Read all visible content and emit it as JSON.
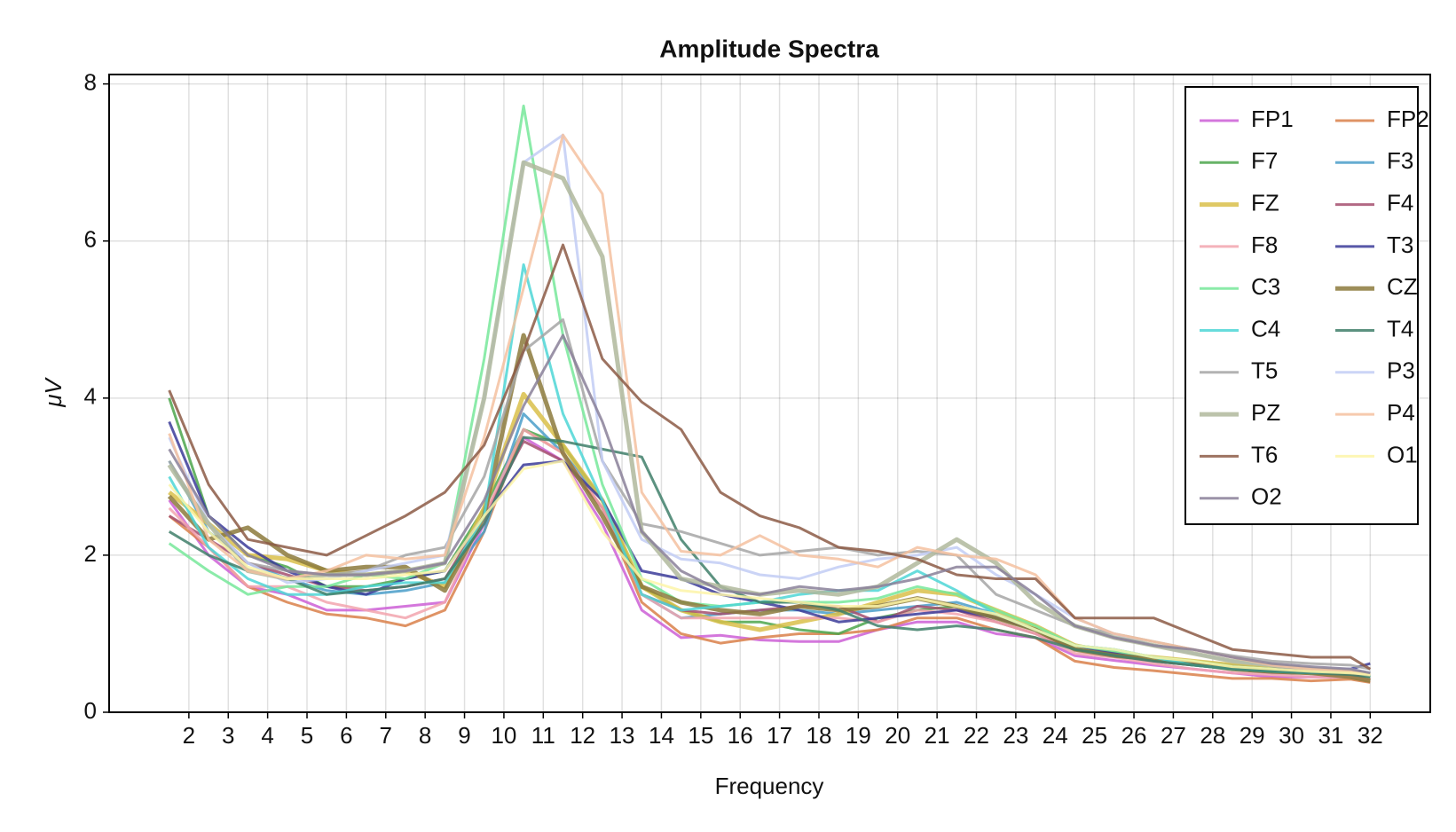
{
  "chart_data": {
    "type": "line",
    "title": "Amplitude Spectra",
    "xlabel": "Frequency",
    "ylabel": "μV",
    "x": [
      1.5,
      2.5,
      3.5,
      4.5,
      5.5,
      6.5,
      7.5,
      8.5,
      9.5,
      10.5,
      11.5,
      12.5,
      13.5,
      14.5,
      15.5,
      16.5,
      17.5,
      18.5,
      19.5,
      20.5,
      21.5,
      22.5,
      23.5,
      24.5,
      25.5,
      26.5,
      27.5,
      28.5,
      29.5,
      30.5,
      31.5,
      32
    ],
    "xlim": [
      -0.025,
      33.525
    ],
    "xticks": [
      2,
      3,
      4,
      5,
      6,
      7,
      8,
      9,
      10,
      11,
      12,
      13,
      14,
      15,
      16,
      17,
      18,
      19,
      20,
      21,
      22,
      23,
      24,
      25,
      26,
      27,
      28,
      29,
      30,
      31,
      32
    ],
    "ylim": [
      0,
      8.12
    ],
    "yticks": [
      0,
      2,
      4,
      6,
      8
    ],
    "grid": true,
    "legend": "top-right",
    "series": [
      {
        "name": "FP1",
        "color": "#cc5fd6",
        "width": 3,
        "values": [
          2.7,
          2.0,
          1.6,
          1.5,
          1.3,
          1.3,
          1.35,
          1.4,
          2.4,
          3.5,
          3.2,
          2.4,
          1.3,
          0.95,
          0.98,
          0.92,
          0.9,
          0.9,
          1.05,
          1.15,
          1.15,
          1.0,
          0.95,
          0.72,
          0.66,
          0.6,
          0.55,
          0.5,
          0.45,
          0.45,
          0.45,
          0.42
        ]
      },
      {
        "name": "FP2",
        "color": "#d9804a",
        "width": 3,
        "values": [
          2.5,
          2.1,
          1.6,
          1.4,
          1.25,
          1.2,
          1.1,
          1.3,
          2.3,
          3.6,
          3.3,
          2.6,
          1.4,
          1.0,
          0.88,
          0.95,
          1.0,
          1.0,
          1.05,
          1.2,
          1.2,
          1.05,
          0.95,
          0.65,
          0.57,
          0.53,
          0.48,
          0.43,
          0.43,
          0.4,
          0.42,
          0.38
        ]
      },
      {
        "name": "F7",
        "color": "#4ca64c",
        "width": 3,
        "values": [
          4.0,
          2.5,
          2.0,
          1.85,
          1.6,
          1.6,
          1.7,
          1.8,
          2.6,
          3.6,
          3.4,
          2.7,
          1.6,
          1.3,
          1.15,
          1.15,
          1.05,
          1.0,
          1.2,
          1.3,
          1.35,
          1.2,
          1.05,
          0.8,
          0.75,
          0.65,
          0.6,
          0.55,
          0.5,
          0.5,
          0.5,
          0.45
        ]
      },
      {
        "name": "F3",
        "color": "#4a9ec9",
        "width": 3,
        "values": [
          3.2,
          2.3,
          1.9,
          1.7,
          1.55,
          1.5,
          1.55,
          1.65,
          2.3,
          3.8,
          3.3,
          2.7,
          1.5,
          1.2,
          1.25,
          1.3,
          1.3,
          1.25,
          1.3,
          1.35,
          1.4,
          1.25,
          1.05,
          0.85,
          0.8,
          0.7,
          0.65,
          0.6,
          0.55,
          0.5,
          0.5,
          0.5
        ]
      },
      {
        "name": "FZ",
        "color": "#d9bf4a",
        "width": 5,
        "values": [
          2.8,
          2.4,
          2.0,
          1.95,
          1.8,
          1.75,
          1.8,
          1.6,
          2.6,
          4.05,
          3.4,
          2.7,
          1.6,
          1.3,
          1.15,
          1.05,
          1.15,
          1.25,
          1.4,
          1.55,
          1.5,
          1.3,
          1.1,
          0.85,
          0.75,
          0.7,
          0.65,
          0.6,
          0.55,
          0.5,
          0.5,
          0.48
        ]
      },
      {
        "name": "F4",
        "color": "#a54f6e",
        "width": 3,
        "values": [
          2.5,
          2.2,
          1.9,
          1.75,
          1.6,
          1.55,
          1.6,
          1.7,
          2.5,
          3.45,
          3.2,
          2.6,
          1.5,
          1.3,
          1.25,
          1.3,
          1.35,
          1.35,
          1.15,
          1.35,
          1.3,
          1.15,
          1.0,
          0.8,
          0.72,
          0.65,
          0.6,
          0.55,
          0.5,
          0.5,
          0.48,
          0.42
        ]
      },
      {
        "name": "F8",
        "color": "#f2a5ae",
        "width": 3,
        "values": [
          2.6,
          2.1,
          1.6,
          1.6,
          1.4,
          1.3,
          1.2,
          1.4,
          2.5,
          3.6,
          3.3,
          2.6,
          1.5,
          1.2,
          1.2,
          1.2,
          1.2,
          1.2,
          1.15,
          1.3,
          1.25,
          1.15,
          1.0,
          0.75,
          0.7,
          0.62,
          0.55,
          0.5,
          0.48,
          0.45,
          0.45,
          0.42
        ]
      },
      {
        "name": "T3",
        "color": "#3b3b99",
        "width": 3,
        "values": [
          3.7,
          2.5,
          2.1,
          1.8,
          1.6,
          1.5,
          1.7,
          1.8,
          2.5,
          3.15,
          3.2,
          2.7,
          1.8,
          1.7,
          1.5,
          1.4,
          1.3,
          1.15,
          1.2,
          1.25,
          1.3,
          1.2,
          1.05,
          0.85,
          0.75,
          0.7,
          0.62,
          0.58,
          0.55,
          0.55,
          0.55,
          0.62
        ]
      },
      {
        "name": "C3",
        "color": "#77e89a",
        "width": 3,
        "values": [
          2.15,
          1.8,
          1.5,
          1.6,
          1.6,
          1.75,
          1.7,
          1.9,
          4.5,
          7.72,
          4.8,
          2.9,
          1.7,
          1.4,
          1.35,
          1.4,
          1.4,
          1.4,
          1.45,
          1.6,
          1.5,
          1.3,
          1.1,
          0.85,
          0.78,
          0.7,
          0.65,
          0.58,
          0.55,
          0.5,
          0.52,
          0.45
        ]
      },
      {
        "name": "CZ",
        "color": "#8c7a3c",
        "width": 5,
        "values": [
          2.75,
          2.2,
          2.35,
          2.0,
          1.8,
          1.85,
          1.85,
          1.55,
          2.5,
          4.8,
          3.3,
          2.5,
          1.6,
          1.4,
          1.3,
          1.25,
          1.35,
          1.3,
          1.35,
          1.45,
          1.35,
          1.2,
          1.05,
          0.8,
          0.72,
          0.68,
          0.62,
          0.55,
          0.52,
          0.5,
          0.45,
          0.4
        ]
      },
      {
        "name": "C4",
        "color": "#4dd6d6",
        "width": 3,
        "values": [
          3.0,
          2.1,
          1.7,
          1.5,
          1.5,
          1.6,
          1.65,
          1.65,
          2.5,
          5.7,
          3.8,
          2.7,
          1.5,
          1.3,
          1.35,
          1.4,
          1.5,
          1.55,
          1.55,
          1.8,
          1.55,
          1.25,
          1.05,
          0.85,
          0.8,
          0.7,
          0.6,
          0.55,
          0.52,
          0.5,
          0.52,
          0.5
        ]
      },
      {
        "name": "T4",
        "color": "#3f7f6a",
        "width": 3,
        "values": [
          2.3,
          2.0,
          1.8,
          1.7,
          1.5,
          1.55,
          1.6,
          1.7,
          2.4,
          3.5,
          3.45,
          3.35,
          3.25,
          2.2,
          1.6,
          1.4,
          1.4,
          1.3,
          1.1,
          1.05,
          1.1,
          1.05,
          0.95,
          0.8,
          0.72,
          0.65,
          0.6,
          0.55,
          0.52,
          0.5,
          0.48,
          0.45
        ]
      },
      {
        "name": "T5",
        "color": "#a6a6a6",
        "width": 3,
        "values": [
          3.2,
          2.4,
          1.9,
          1.8,
          1.75,
          1.8,
          2.0,
          2.1,
          3.0,
          4.6,
          5.0,
          3.2,
          2.4,
          2.3,
          2.15,
          2.0,
          2.05,
          2.1,
          2.0,
          2.05,
          2.0,
          1.5,
          1.3,
          1.1,
          1.0,
          0.9,
          0.8,
          0.72,
          0.65,
          0.62,
          0.6,
          0.55
        ]
      },
      {
        "name": "P3",
        "color": "#c2cdf5",
        "width": 3,
        "values": [
          3.5,
          2.4,
          1.9,
          1.65,
          1.7,
          1.8,
          1.9,
          2.0,
          4.0,
          7.0,
          7.35,
          3.2,
          2.2,
          1.95,
          1.9,
          1.75,
          1.7,
          1.85,
          1.95,
          2.0,
          2.1,
          1.75,
          1.5,
          1.2,
          1.0,
          0.85,
          0.75,
          0.65,
          0.6,
          0.55,
          0.55,
          0.5
        ]
      },
      {
        "name": "PZ",
        "color": "#b0b89c",
        "width": 5,
        "values": [
          3.15,
          2.4,
          1.8,
          1.7,
          1.75,
          1.75,
          1.8,
          1.9,
          4.0,
          7.0,
          6.8,
          5.8,
          2.3,
          1.7,
          1.6,
          1.5,
          1.55,
          1.5,
          1.6,
          1.9,
          2.2,
          1.9,
          1.4,
          1.1,
          0.95,
          0.85,
          0.75,
          0.65,
          0.6,
          0.55,
          0.52,
          0.48
        ]
      },
      {
        "name": "P4",
        "color": "#f5c1a0",
        "width": 3,
        "values": [
          3.55,
          2.2,
          1.8,
          1.7,
          1.8,
          2.0,
          1.95,
          2.0,
          3.5,
          5.4,
          7.35,
          6.6,
          2.8,
          2.05,
          2.0,
          2.25,
          2.0,
          1.95,
          1.85,
          2.1,
          2.0,
          1.95,
          1.75,
          1.2,
          1.0,
          0.9,
          0.8,
          0.7,
          0.6,
          0.55,
          0.52,
          0.48
        ]
      },
      {
        "name": "T6",
        "color": "#8c5a45",
        "width": 3,
        "values": [
          4.1,
          2.9,
          2.2,
          2.1,
          2.0,
          2.25,
          2.5,
          2.8,
          3.4,
          4.6,
          5.95,
          4.5,
          3.95,
          3.6,
          2.8,
          2.5,
          2.35,
          2.1,
          2.05,
          1.95,
          1.75,
          1.7,
          1.7,
          1.2,
          1.2,
          1.2,
          1.0,
          0.8,
          0.75,
          0.7,
          0.7,
          0.55
        ]
      },
      {
        "name": "O1",
        "color": "#fdf5a8",
        "width": 3,
        "values": [
          2.9,
          2.3,
          1.85,
          1.7,
          1.7,
          1.7,
          1.75,
          1.8,
          2.5,
          3.1,
          3.2,
          2.3,
          1.7,
          1.55,
          1.5,
          1.45,
          1.4,
          1.35,
          1.35,
          1.45,
          1.35,
          1.25,
          1.05,
          0.85,
          0.8,
          0.7,
          0.65,
          0.58,
          0.55,
          0.52,
          0.5,
          0.48
        ]
      },
      {
        "name": "O2",
        "color": "#8a8099",
        "width": 3,
        "values": [
          3.35,
          2.5,
          2.0,
          1.8,
          1.75,
          1.75,
          1.8,
          1.9,
          2.7,
          3.9,
          4.8,
          3.7,
          2.3,
          1.8,
          1.55,
          1.5,
          1.6,
          1.55,
          1.6,
          1.7,
          1.85,
          1.85,
          1.5,
          1.1,
          0.95,
          0.85,
          0.8,
          0.7,
          0.62,
          0.58,
          0.55,
          0.5
        ]
      }
    ]
  }
}
